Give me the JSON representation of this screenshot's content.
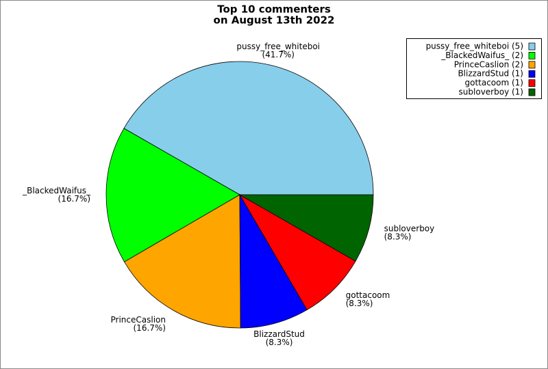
{
  "chart_data": {
    "type": "pie",
    "title": [
      "Top 10 commenters",
      "on August 13th 2022"
    ],
    "categories": [
      "pussy_free_whiteboi",
      "_BlackedWaifus_",
      "PrinceCaslion",
      "BlizzardStud",
      "gottacoom",
      "subloverboy"
    ],
    "values": [
      41.7,
      16.7,
      16.7,
      8.3,
      8.3,
      8.3
    ],
    "value_labels": [
      "(41.7%)",
      "(16.7%)",
      "(16.7%)",
      "(8.3%)",
      "(8.3%)",
      "(8.3%)"
    ],
    "colors": [
      "#87ceeb",
      "#00ff00",
      "#ffa500",
      "#0000ff",
      "#ff0000",
      "#006400"
    ],
    "legend_labels": [
      "pussy_free_whiteboi (5)",
      "_BlackedWaifus_ (2)",
      "PrinceCaslion (2)",
      "BlizzardStud (1)",
      "gottacoom (1)",
      "subloverboy (1)"
    ],
    "legend": "upper right"
  }
}
